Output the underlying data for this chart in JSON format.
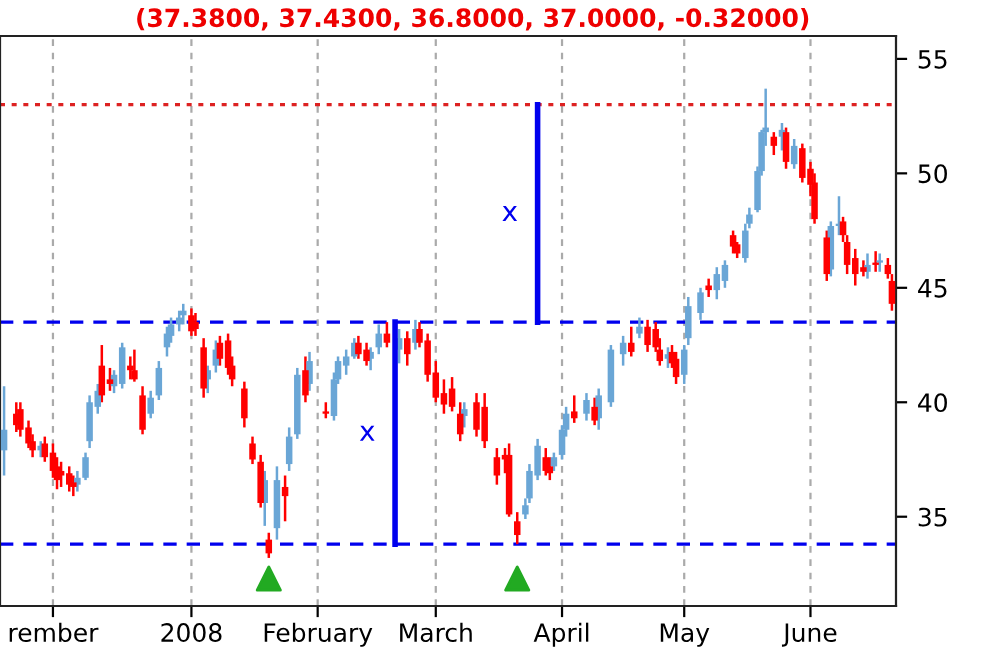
{
  "chart_data": {
    "type": "candlestick",
    "title": "(37.3800, 37.4300, 36.8000, 37.0000, -0.32000)",
    "xlim": [
      "2007-11-15",
      "2008-06-22"
    ],
    "xticks": [
      {
        "value": "2007-11-28",
        "label": "rember"
      },
      {
        "value": "2008-01-01",
        "label": "2008"
      },
      {
        "value": "2008-02-01",
        "label": "February"
      },
      {
        "value": "2008-03-01",
        "label": "March"
      },
      {
        "value": "2008-04-01",
        "label": "April"
      },
      {
        "value": "2008-05-01",
        "label": "May"
      },
      {
        "value": "2008-06-01",
        "label": "June"
      }
    ],
    "ylim": [
      31.1,
      56
    ],
    "yticks": [
      35,
      40,
      45,
      50,
      55
    ],
    "grid": "x",
    "ref_lines": [
      {
        "axis": "y",
        "value": 53,
        "color": "#dd2222",
        "line_style": "dotted"
      },
      {
        "axis": "y",
        "value": 43.5,
        "color": "#0000ee",
        "line_style": "dashed"
      },
      {
        "axis": "y",
        "value": 33.8,
        "color": "#0000ee",
        "line_style": "dashed"
      }
    ],
    "annotations": [
      "x",
      "x"
    ],
    "series": [
      {
        "color": "#6aa6d6",
        "x": [
          "2007-11-16",
          "2007-11-25",
          "2007-12-04",
          "2007-12-06",
          "2007-12-07",
          "2007-12-09",
          "2007-12-13",
          "2007-12-15",
          "2007-12-22",
          "2007-12-24",
          "2007-12-26",
          "2007-12-27",
          "2007-12-29",
          "2007-12-30",
          "2008-01-05",
          "2008-01-07",
          "2008-01-19",
          "2008-01-22",
          "2008-01-25",
          "2008-01-27",
          "2008-01-30",
          "2008-02-05",
          "2008-02-06",
          "2008-02-08",
          "2008-02-10",
          "2008-02-14",
          "2008-02-16",
          "2008-02-21",
          "2008-02-25",
          "2008-03-08",
          "2008-03-23",
          "2008-03-24",
          "2008-03-26",
          "2008-03-30",
          "2008-04-01",
          "2008-04-02",
          "2008-04-07",
          "2008-04-10",
          "2008-04-13",
          "2008-04-16",
          "2008-04-20",
          "2008-04-27",
          "2008-05-01",
          "2008-05-02",
          "2008-05-05",
          "2008-05-09",
          "2008-05-11",
          "2008-05-16",
          "2008-05-17",
          "2008-05-19",
          "2008-05-20",
          "2008-05-21",
          "2008-05-25",
          "2008-05-28",
          "2008-06-06",
          "2008-06-08",
          "2008-06-15",
          "2008-06-18"
        ],
        "ohlc": [
          [
            37.9,
            40.7,
            36.8,
            38.8
          ],
          [
            37.9,
            38.3,
            37.6,
            38.1
          ],
          [
            36.4,
            37.0,
            36.1,
            36.7
          ],
          [
            36.7,
            37.8,
            36.6,
            37.6
          ],
          [
            38.3,
            40.3,
            38.0,
            40.0
          ],
          [
            39.8,
            40.8,
            39.5,
            40.5
          ],
          [
            40.7,
            41.4,
            40.4,
            41.2
          ],
          [
            40.8,
            42.6,
            40.6,
            42.4
          ],
          [
            39.5,
            40.5,
            39.3,
            40.2
          ],
          [
            40.3,
            41.8,
            40.1,
            41.5
          ],
          [
            42.4,
            43.3,
            42.0,
            43.0
          ],
          [
            42.9,
            43.7,
            42.6,
            43.4
          ],
          [
            43.4,
            44.0,
            43.1,
            43.7
          ],
          [
            43.8,
            44.3,
            43.4,
            44.0
          ],
          [
            41.0,
            41.6,
            40.4,
            41.4
          ],
          [
            41.6,
            42.7,
            41.3,
            42.3
          ],
          [
            35.6,
            37.0,
            34.6,
            36.6
          ],
          [
            34.5,
            37.2,
            34.0,
            36.6
          ],
          [
            37.3,
            38.9,
            37.0,
            38.5
          ],
          [
            38.6,
            41.5,
            38.4,
            41.2
          ],
          [
            40.8,
            42.2,
            40.5,
            41.8
          ],
          [
            39.4,
            41.3,
            39.2,
            41.0
          ],
          [
            41.0,
            42.0,
            40.8,
            41.8
          ],
          [
            41.6,
            42.3,
            41.2,
            42.0
          ],
          [
            42.0,
            42.8,
            41.9,
            42.6
          ],
          [
            41.9,
            42.4,
            41.4,
            42.2
          ],
          [
            42.4,
            43.4,
            42.1,
            43.0
          ],
          [
            42.3,
            43.2,
            41.7,
            42.8
          ],
          [
            42.6,
            43.6,
            42.3,
            43.2
          ],
          [
            39.4,
            40.0,
            38.9,
            39.7
          ],
          [
            35.1,
            35.8,
            34.9,
            35.5
          ],
          [
            35.8,
            37.3,
            35.6,
            37.0
          ],
          [
            36.8,
            38.4,
            36.6,
            38.1
          ],
          [
            37.2,
            37.8,
            37.0,
            37.6
          ],
          [
            37.7,
            39.0,
            37.5,
            38.8
          ],
          [
            38.8,
            39.8,
            38.5,
            39.5
          ],
          [
            39.5,
            40.4,
            39.2,
            40.1
          ],
          [
            39.3,
            40.6,
            38.8,
            40.3
          ],
          [
            40.0,
            42.5,
            39.8,
            42.3
          ],
          [
            42.1,
            42.9,
            41.6,
            42.6
          ],
          [
            43.0,
            43.7,
            42.8,
            43.3
          ],
          [
            41.9,
            42.4,
            41.5,
            42.1
          ],
          [
            41.2,
            42.5,
            40.8,
            42.3
          ],
          [
            42.8,
            44.6,
            42.5,
            44.2
          ],
          [
            43.9,
            45.0,
            43.6,
            44.8
          ],
          [
            44.9,
            45.9,
            44.5,
            45.6
          ],
          [
            45.3,
            46.2,
            45.0,
            46.0
          ],
          [
            46.3,
            47.8,
            46.1,
            47.5
          ],
          [
            47.8,
            48.5,
            47.6,
            48.2
          ],
          [
            48.4,
            50.3,
            48.3,
            50.1
          ],
          [
            50.1,
            51.9,
            49.9,
            51.8
          ],
          [
            51.8,
            53.7,
            51.2,
            52.0
          ],
          [
            51.6,
            52.2,
            51.0,
            51.9
          ],
          [
            50.4,
            51.5,
            50.2,
            51.2
          ],
          [
            45.8,
            47.9,
            45.5,
            47.7
          ],
          [
            47.7,
            49.0,
            47.3,
            47.8
          ],
          [
            45.7,
            46.5,
            45.4,
            46.0
          ],
          [
            46.1,
            46.5,
            45.7,
            46.2
          ]
        ]
      },
      {
        "color": "#ff0000",
        "x": [
          "2007-11-19",
          "2007-11-20",
          "2007-11-22",
          "2007-11-23",
          "2007-11-26",
          "2007-11-28",
          "2007-11-29",
          "2007-11-30",
          "2007-12-02",
          "2007-12-03",
          "2007-12-10",
          "2007-12-12",
          "2007-12-17",
          "2007-12-18",
          "2007-12-20",
          "2008-01-01",
          "2008-01-02",
          "2008-01-04",
          "2008-01-08",
          "2008-01-10",
          "2008-01-11",
          "2008-01-14",
          "2008-01-16",
          "2008-01-18",
          "2008-01-20",
          "2008-01-24",
          "2008-01-29",
          "2008-02-03",
          "2008-02-11",
          "2008-02-13",
          "2008-02-18",
          "2008-02-23",
          "2008-02-26",
          "2008-02-28",
          "2008-03-01",
          "2008-03-03",
          "2008-03-05",
          "2008-03-07",
          "2008-03-11",
          "2008-03-13",
          "2008-03-16",
          "2008-03-18",
          "2008-03-19",
          "2008-03-21",
          "2008-03-28",
          "2008-03-29",
          "2008-04-04",
          "2008-04-09",
          "2008-04-18",
          "2008-04-22",
          "2008-04-24",
          "2008-04-25",
          "2008-04-28",
          "2008-04-29",
          "2008-05-07",
          "2008-05-13",
          "2008-05-14",
          "2008-05-23",
          "2008-05-26",
          "2008-05-30",
          "2008-06-01",
          "2008-06-02",
          "2008-06-05",
          "2008-06-09",
          "2008-06-10",
          "2008-06-12",
          "2008-06-14",
          "2008-06-17",
          "2008-06-20",
          "2008-06-21"
        ],
        "ohlc": [
          [
            39.5,
            40.0,
            38.7,
            39.0
          ],
          [
            39.7,
            40.0,
            38.5,
            38.8
          ],
          [
            38.9,
            39.2,
            38.0,
            38.2
          ],
          [
            38.3,
            38.6,
            37.6,
            37.9
          ],
          [
            38.2,
            38.5,
            37.4,
            37.6
          ],
          [
            37.8,
            38.2,
            36.7,
            37.0
          ],
          [
            37.2,
            37.6,
            36.2,
            36.6
          ],
          [
            37.0,
            37.4,
            36.3,
            36.8
          ],
          [
            36.9,
            37.2,
            36.1,
            36.4
          ],
          [
            36.5,
            36.8,
            35.9,
            36.3
          ],
          [
            41.6,
            42.5,
            40.0,
            40.3
          ],
          [
            41.0,
            41.5,
            40.5,
            40.8
          ],
          [
            41.6,
            42.0,
            41.0,
            41.4
          ],
          [
            41.4,
            42.3,
            40.9,
            41.0
          ],
          [
            40.3,
            40.7,
            38.6,
            38.8
          ],
          [
            43.8,
            44.1,
            42.9,
            43.1
          ],
          [
            43.5,
            43.9,
            42.9,
            43.2
          ],
          [
            42.4,
            42.8,
            40.2,
            40.6
          ],
          [
            42.6,
            42.9,
            41.6,
            41.9
          ],
          [
            42.7,
            43.0,
            41.2,
            41.5
          ],
          [
            41.6,
            42.0,
            40.7,
            41.0
          ],
          [
            40.6,
            40.9,
            38.9,
            39.3
          ],
          [
            38.2,
            38.5,
            37.3,
            37.5
          ],
          [
            37.4,
            37.7,
            35.4,
            35.6
          ],
          [
            34.0,
            34.3,
            33.2,
            33.4
          ],
          [
            36.3,
            36.8,
            34.8,
            35.9
          ],
          [
            41.4,
            42.0,
            40.0,
            40.3
          ],
          [
            39.6,
            40.0,
            39.3,
            39.5
          ],
          [
            42.6,
            42.9,
            41.9,
            42.1
          ],
          [
            42.3,
            42.6,
            41.6,
            41.8
          ],
          [
            43.0,
            43.5,
            42.4,
            42.6
          ],
          [
            42.8,
            43.1,
            41.6,
            42.1
          ],
          [
            43.2,
            43.5,
            42.4,
            42.6
          ],
          [
            42.7,
            43.0,
            40.9,
            41.2
          ],
          [
            41.3,
            41.8,
            40.0,
            40.2
          ],
          [
            40.4,
            41.0,
            39.5,
            39.9
          ],
          [
            40.6,
            41.1,
            39.6,
            39.8
          ],
          [
            39.5,
            40.0,
            38.3,
            38.6
          ],
          [
            40.0,
            40.4,
            38.5,
            38.8
          ],
          [
            39.8,
            40.4,
            38.0,
            38.3
          ],
          [
            37.6,
            38.0,
            36.4,
            36.8
          ],
          [
            37.7,
            38.0,
            36.9,
            37.5
          ],
          [
            37.7,
            38.2,
            35.0,
            35.1
          ],
          [
            34.8,
            35.2,
            33.8,
            34.2
          ],
          [
            37.6,
            38.0,
            36.8,
            37.0
          ],
          [
            37.2,
            37.6,
            36.6,
            36.9
          ],
          [
            39.6,
            40.3,
            39.1,
            39.3
          ],
          [
            39.8,
            40.2,
            39.0,
            39.2
          ],
          [
            42.6,
            43.3,
            42.0,
            42.2
          ],
          [
            43.3,
            43.6,
            42.2,
            42.5
          ],
          [
            43.2,
            43.5,
            42.2,
            42.4
          ],
          [
            42.3,
            42.8,
            41.6,
            41.8
          ],
          [
            42.2,
            42.5,
            41.5,
            41.7
          ],
          [
            41.9,
            42.2,
            40.8,
            41.1
          ],
          [
            45.1,
            45.4,
            44.6,
            44.9
          ],
          [
            47.3,
            47.5,
            46.5,
            46.8
          ],
          [
            46.9,
            47.0,
            46.3,
            46.5
          ],
          [
            51.6,
            51.8,
            50.8,
            51.2
          ],
          [
            51.8,
            52.0,
            50.2,
            50.5
          ],
          [
            51.1,
            51.3,
            49.6,
            49.8
          ],
          [
            50.2,
            50.5,
            49.0,
            49.5
          ],
          [
            49.6,
            50.0,
            47.8,
            48.0
          ],
          [
            47.2,
            47.5,
            45.3,
            45.6
          ],
          [
            47.9,
            48.1,
            47.0,
            47.3
          ],
          [
            47.0,
            47.3,
            45.6,
            46.0
          ],
          [
            46.3,
            46.7,
            45.1,
            45.6
          ],
          [
            45.9,
            46.2,
            45.5,
            45.7
          ],
          [
            46.1,
            46.6,
            45.7,
            46.0
          ],
          [
            46.0,
            46.3,
            45.4,
            45.6
          ],
          [
            45.3,
            45.6,
            44.0,
            44.3
          ]
        ]
      },
      {
        "type": "line",
        "color": "#0000ee",
        "x": [
          "2008-02-20",
          "2008-02-20"
        ],
        "values": [
          33.8,
          43.5
        ]
      },
      {
        "type": "line",
        "color": "#0000ee",
        "x": [
          "2008-03-26",
          "2008-03-26"
        ],
        "values": [
          43.5,
          53
        ]
      },
      {
        "type": "scatter",
        "color": "#22aa22",
        "marker": "triangle",
        "x": [
          "2008-01-20",
          "2008-03-21"
        ],
        "values": [
          32.3,
          32.3
        ]
      }
    ]
  }
}
